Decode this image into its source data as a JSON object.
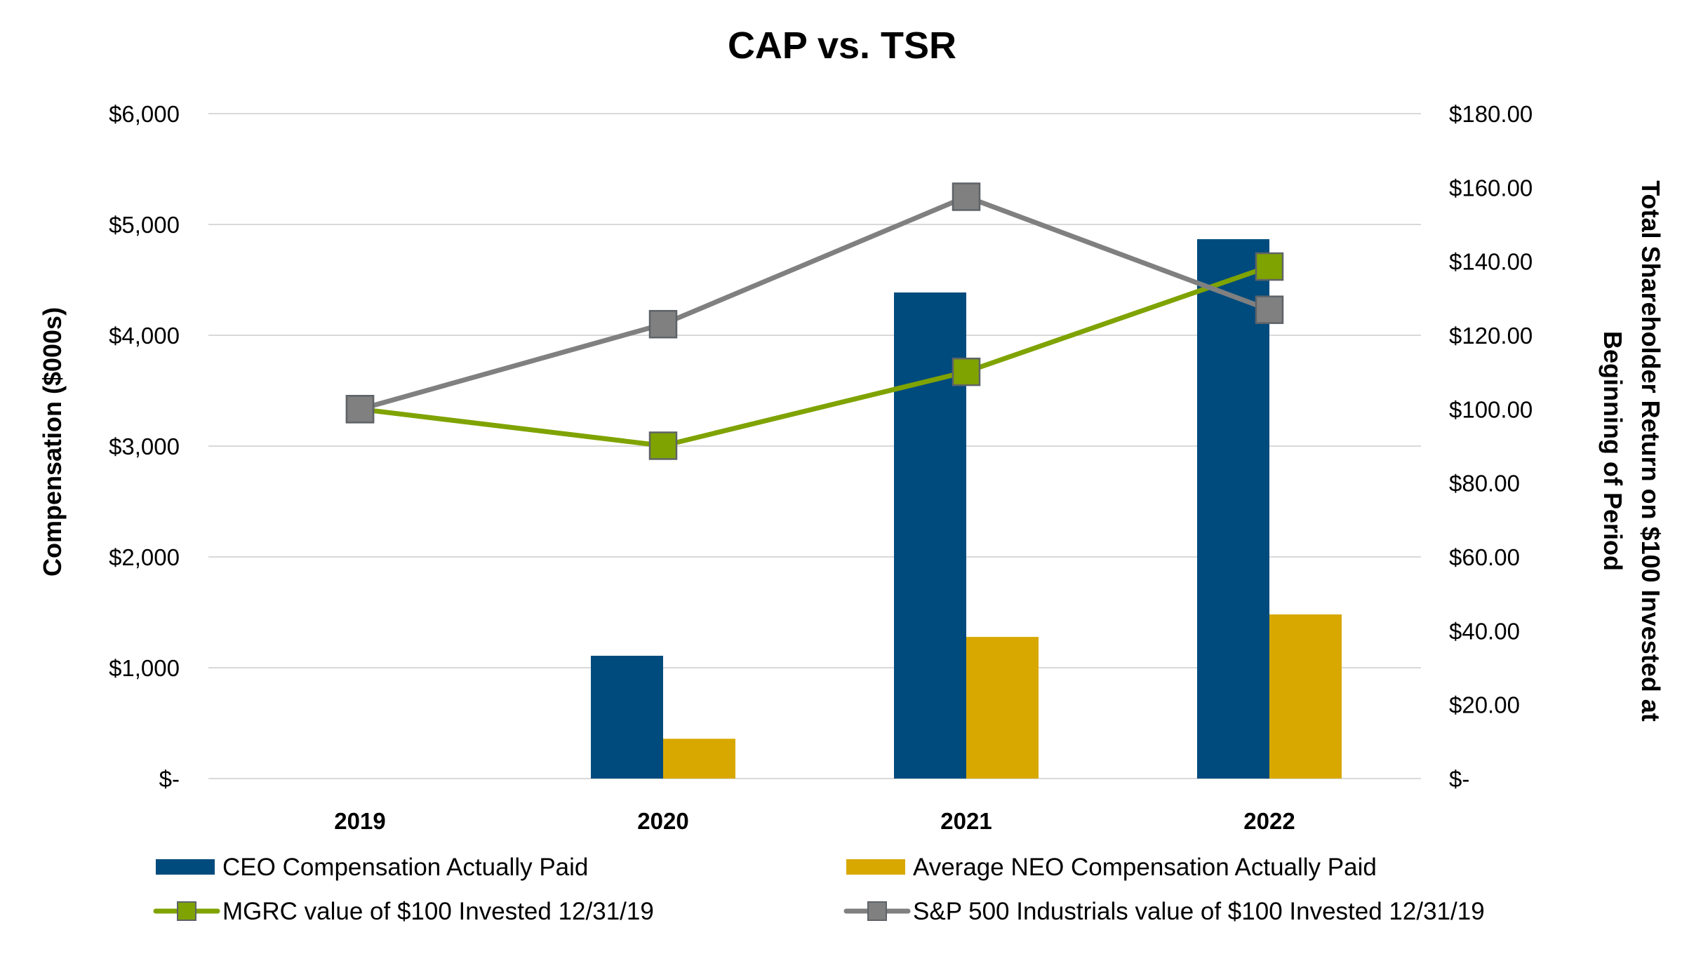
{
  "chart_data": {
    "type": "bar",
    "title": "CAP vs. TSR",
    "categories": [
      "2019",
      "2020",
      "2021",
      "2022"
    ],
    "y_left": {
      "label": "Compensation ($000s)",
      "range": [
        0,
        6000
      ],
      "ticks": [
        0,
        1000,
        2000,
        3000,
        4000,
        5000,
        6000
      ],
      "tick_labels": [
        "$-",
        "$1,000",
        "$2,000",
        "$3,000",
        "$4,000",
        "$5,000",
        "$6,000"
      ]
    },
    "y_right": {
      "label_lines": [
        "Total Shareholder Return on $100 Invested at",
        "Beginning of Period"
      ],
      "range": [
        0,
        180
      ],
      "ticks": [
        0,
        20,
        40,
        60,
        80,
        100,
        120,
        140,
        160,
        180
      ],
      "tick_labels": [
        "$-",
        "$20.00",
        "$40.00",
        "$60.00",
        "$80.00",
        "$100.00",
        "$120.00",
        "$140.00",
        "$160.00",
        "$180.00"
      ]
    },
    "grid": true,
    "legend_position": "bottom",
    "bar_series": [
      {
        "name": "CEO Compensation Actually Paid",
        "axis": "left",
        "color": "#004B7D",
        "values": [
          0,
          1108,
          4386,
          4867
        ]
      },
      {
        "name": "Average NEO Compensation Actually Paid",
        "axis": "left",
        "color": "#D8A800",
        "values": [
          0,
          359,
          1278,
          1481
        ]
      }
    ],
    "line_series": [
      {
        "name": "MGRC value of $100 Invested 12/31/19",
        "axis": "right",
        "color": "#7FA300",
        "marker_color": "#7FA300",
        "values": [
          100.0,
          90.1,
          110.1,
          138.6
        ]
      },
      {
        "name": "S&P 500 Industrials value of $100 Invested 12/31/19",
        "axis": "right",
        "color": "#808080",
        "marker_color": "#808080",
        "values": [
          100.0,
          123.0,
          157.5,
          126.9
        ]
      }
    ],
    "legend": [
      {
        "label": "CEO Compensation Actually Paid",
        "kind": "bar",
        "series": "bar_series.0"
      },
      {
        "label": "Average NEO Compensation Actually Paid",
        "kind": "bar",
        "series": "bar_series.1"
      },
      {
        "label": "MGRC value of $100 Invested 12/31/19",
        "kind": "line",
        "series": "line_series.0"
      },
      {
        "label": "S&P 500 Industrials value of $100 Invested 12/31/19",
        "kind": "line",
        "series": "line_series.1"
      }
    ]
  },
  "colors": {
    "gridline": "#D9D9D9",
    "marker_border": "#5F6368"
  }
}
